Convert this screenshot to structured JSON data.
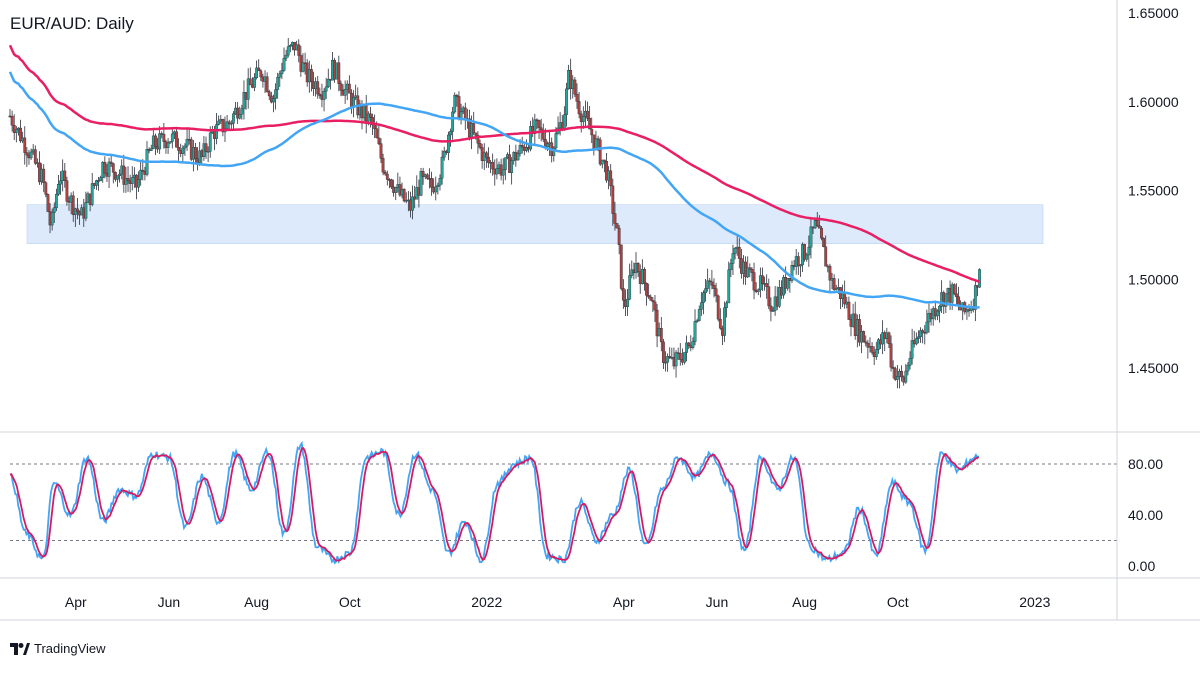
{
  "title": "EUR/AUD: Daily",
  "brand": "TradingView",
  "colors": {
    "up": "#26a69a",
    "down": "#b0413e",
    "wick": "#2a2e39",
    "ma_slow": "#e91e63",
    "ma_fast": "#42a5f5",
    "zone": "#dceafc",
    "stoch_k": "#42a5f5",
    "stoch_d": "#d81b60"
  },
  "chart_data": [
    {
      "type": "line",
      "title": "EUR/AUD: Daily",
      "x_ticks": [
        "Apr",
        "Jun",
        "Aug",
        "Oct",
        "2022",
        "Apr",
        "Jun",
        "Aug",
        "Oct",
        "2023"
      ],
      "y_ticks": [
        "1.65000",
        "1.60000",
        "1.55000",
        "1.50000",
        "1.45000"
      ],
      "ylim": [
        1.41,
        1.65
      ],
      "series": [],
      "price_path": [
        [
          2021.13,
          1.592
        ],
        [
          2021.16,
          1.575
        ],
        [
          2021.19,
          1.556
        ],
        [
          2021.205,
          1.528
        ],
        [
          2021.22,
          1.56
        ],
        [
          2021.24,
          1.545
        ],
        [
          2021.26,
          1.535
        ],
        [
          2021.28,
          1.55
        ],
        [
          2021.3,
          1.565
        ],
        [
          2021.33,
          1.56
        ],
        [
          2021.36,
          1.552
        ],
        [
          2021.39,
          1.575
        ],
        [
          2021.42,
          1.58
        ],
        [
          2021.45,
          1.575
        ],
        [
          2021.48,
          1.568
        ],
        [
          2021.5,
          1.583
        ],
        [
          2021.53,
          1.588
        ],
        [
          2021.56,
          1.605
        ],
        [
          2021.59,
          1.618
        ],
        [
          2021.61,
          1.602
        ],
        [
          2021.63,
          1.625
        ],
        [
          2021.65,
          1.632
        ],
        [
          2021.67,
          1.615
        ],
        [
          2021.7,
          1.607
        ],
        [
          2021.72,
          1.62
        ],
        [
          2021.74,
          1.607
        ],
        [
          2021.76,
          1.598
        ],
        [
          2021.79,
          1.588
        ],
        [
          2021.81,
          1.565
        ],
        [
          2021.84,
          1.548
        ],
        [
          2021.86,
          1.54
        ],
        [
          2021.88,
          1.555
        ],
        [
          2021.9,
          1.552
        ],
        [
          2021.92,
          1.565
        ],
        [
          2021.94,
          1.6
        ],
        [
          2021.96,
          1.59
        ],
        [
          2021.98,
          1.578
        ],
        [
          2022.0,
          1.566
        ],
        [
          2022.03,
          1.562
        ],
        [
          2022.06,
          1.572
        ],
        [
          2022.09,
          1.585
        ],
        [
          2022.12,
          1.575
        ],
        [
          2022.14,
          1.592
        ],
        [
          2022.15,
          1.615
        ],
        [
          2022.17,
          1.596
        ],
        [
          2022.19,
          1.583
        ],
        [
          2022.22,
          1.56
        ],
        [
          2022.24,
          1.52
        ],
        [
          2022.25,
          1.482
        ],
        [
          2022.27,
          1.51
        ],
        [
          2022.3,
          1.49
        ],
        [
          2022.32,
          1.458
        ],
        [
          2022.34,
          1.452
        ],
        [
          2022.37,
          1.462
        ],
        [
          2022.39,
          1.49
        ],
        [
          2022.41,
          1.498
        ],
        [
          2022.43,
          1.473
        ],
        [
          2022.45,
          1.52
        ],
        [
          2022.47,
          1.505
        ],
        [
          2022.5,
          1.496
        ],
        [
          2022.52,
          1.486
        ],
        [
          2022.54,
          1.495
        ],
        [
          2022.56,
          1.51
        ],
        [
          2022.58,
          1.515
        ],
        [
          2022.6,
          1.53
        ],
        [
          2022.61,
          1.52
        ],
        [
          2022.63,
          1.498
        ],
        [
          2022.65,
          1.49
        ],
        [
          2022.67,
          1.475
        ],
        [
          2022.69,
          1.466
        ],
        [
          2022.71,
          1.46
        ],
        [
          2022.73,
          1.47
        ],
        [
          2022.74,
          1.45
        ],
        [
          2022.76,
          1.442
        ],
        [
          2022.77,
          1.455
        ],
        [
          2022.79,
          1.47
        ],
        [
          2022.81,
          1.48
        ],
        [
          2022.83,
          1.49
        ],
        [
          2022.85,
          1.492
        ],
        [
          2022.87,
          1.48
        ],
        [
          2022.89,
          1.49
        ],
        [
          2022.9,
          1.51
        ]
      ]
    },
    {
      "type": "line",
      "x_ticks": [
        "Apr",
        "Jun",
        "Aug",
        "Oct",
        "2022",
        "Apr",
        "Jun",
        "Aug",
        "Oct",
        "2023"
      ],
      "y_ticks": [
        "80.00",
        "40.00",
        "0.00"
      ],
      "ylim": [
        -10,
        100
      ],
      "reference_lines": [
        80,
        20
      ],
      "series": [
        {
          "values_x": [
            2021.13,
            2021.16,
            2021.19,
            2021.21,
            2021.24,
            2021.27,
            2021.3,
            2021.33,
            2021.36,
            2021.39,
            2021.42,
            2021.45,
            2021.48,
            2021.51,
            2021.54,
            2021.57,
            2021.6,
            2021.63,
            2021.66,
            2021.69,
            2021.72,
            2021.75,
            2021.78,
            2021.81,
            2021.84,
            2021.87,
            2021.9,
            2021.93,
            2021.96,
            2021.99,
            2022.02,
            2022.05,
            2022.08,
            2022.11,
            2022.14,
            2022.17,
            2022.2,
            2022.23,
            2022.26,
            2022.29,
            2022.32,
            2022.35,
            2022.38,
            2022.41,
            2022.44,
            2022.47,
            2022.5,
            2022.53,
            2022.56,
            2022.59,
            2022.62,
            2022.65,
            2022.68,
            2022.71,
            2022.74,
            2022.77,
            2022.8,
            2022.83,
            2022.86,
            2022.89,
            2022.9
          ],
          "values": [
            70,
            25,
            5,
            65,
            40,
            85,
            35,
            60,
            55,
            88,
            85,
            30,
            70,
            35,
            88,
            60,
            90,
            25,
            95,
            15,
            5,
            10,
            85,
            90,
            40,
            88,
            60,
            10,
            35,
            5,
            65,
            80,
            85,
            8,
            5,
            50,
            20,
            40,
            75,
            15,
            60,
            85,
            70,
            88,
            65,
            12,
            85,
            60,
            85,
            15,
            5,
            10,
            45,
            8,
            65,
            50,
            12,
            88,
            75,
            85,
            88
          ]
        }
      ]
    }
  ]
}
